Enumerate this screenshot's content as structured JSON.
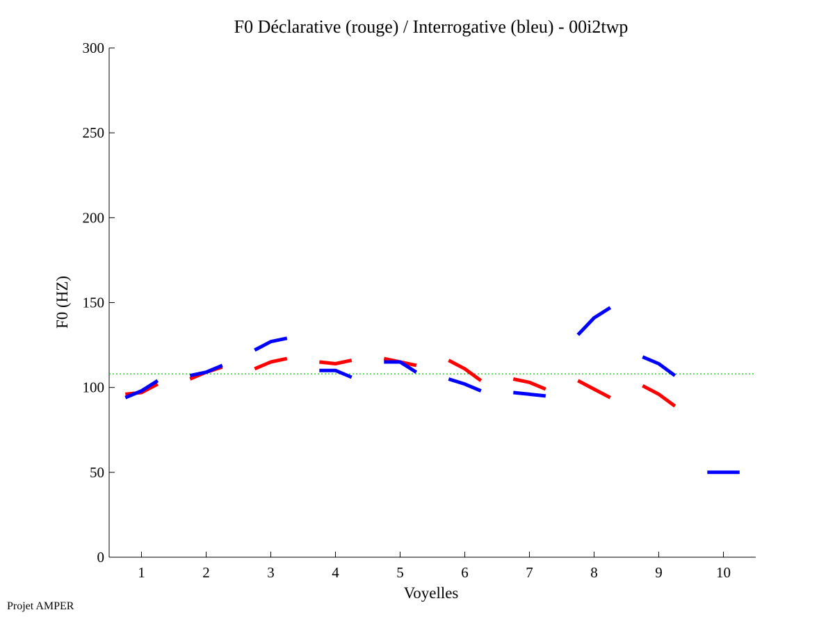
{
  "chart_data": {
    "type": "line",
    "title": "F0 Déclarative (rouge) / Interrogative (bleu) - 00i2twp",
    "xlabel": "Voyelles",
    "ylabel": "F0 (HZ)",
    "xlim": [
      0.5,
      10.5
    ],
    "ylim": [
      0,
      300
    ],
    "xticks": [
      "1",
      "2",
      "3",
      "4",
      "5",
      "6",
      "7",
      "8",
      "9",
      "10"
    ],
    "yticks": [
      "0",
      "50",
      "100",
      "150",
      "200",
      "250",
      "300"
    ],
    "reference_line": {
      "y": 108,
      "style": "dotted",
      "color": "#00cc00"
    },
    "series": [
      {
        "color": "#ff0000",
        "segments": [
          {
            "x": [
              0.75,
              1.0,
              1.25
            ],
            "y": [
              96,
              97,
              102
            ]
          },
          {
            "x": [
              1.75,
              2.0,
              2.25
            ],
            "y": [
              105,
              109,
              112
            ]
          },
          {
            "x": [
              2.75,
              3.0,
              3.25
            ],
            "y": [
              111,
              115,
              117
            ]
          },
          {
            "x": [
              3.75,
              4.0,
              4.25
            ],
            "y": [
              115,
              114,
              116
            ]
          },
          {
            "x": [
              4.75,
              5.0,
              5.25
            ],
            "y": [
              117,
              115,
              113
            ]
          },
          {
            "x": [
              5.75,
              6.0,
              6.25
            ],
            "y": [
              116,
              111,
              104
            ]
          },
          {
            "x": [
              6.75,
              7.0,
              7.25
            ],
            "y": [
              105,
              103,
              99
            ]
          },
          {
            "x": [
              7.75,
              8.0,
              8.25
            ],
            "y": [
              104,
              99,
              94
            ]
          },
          {
            "x": [
              8.75,
              9.0,
              9.25
            ],
            "y": [
              101,
              96,
              89
            ]
          }
        ]
      },
      {
        "color": "#0000ff",
        "segments": [
          {
            "x": [
              0.75,
              1.0,
              1.25
            ],
            "y": [
              94,
              98,
              104
            ]
          },
          {
            "x": [
              1.75,
              2.0,
              2.25
            ],
            "y": [
              107,
              109,
              113
            ]
          },
          {
            "x": [
              2.75,
              3.0,
              3.25
            ],
            "y": [
              122,
              127,
              129
            ]
          },
          {
            "x": [
              3.75,
              4.0,
              4.25
            ],
            "y": [
              110,
              110,
              106
            ]
          },
          {
            "x": [
              4.75,
              5.0,
              5.25
            ],
            "y": [
              115,
              115,
              109
            ]
          },
          {
            "x": [
              5.75,
              6.0,
              6.25
            ],
            "y": [
              105,
              102,
              98
            ]
          },
          {
            "x": [
              6.75,
              7.0,
              7.25
            ],
            "y": [
              97,
              96,
              95
            ]
          },
          {
            "x": [
              7.75,
              8.0,
              8.25
            ],
            "y": [
              131,
              141,
              147
            ]
          },
          {
            "x": [
              8.75,
              9.0,
              9.25
            ],
            "y": [
              118,
              114,
              107
            ]
          },
          {
            "x": [
              9.75,
              10.0,
              10.25
            ],
            "y": [
              50,
              50,
              50
            ]
          }
        ]
      }
    ]
  },
  "footer": "Projet AMPER"
}
